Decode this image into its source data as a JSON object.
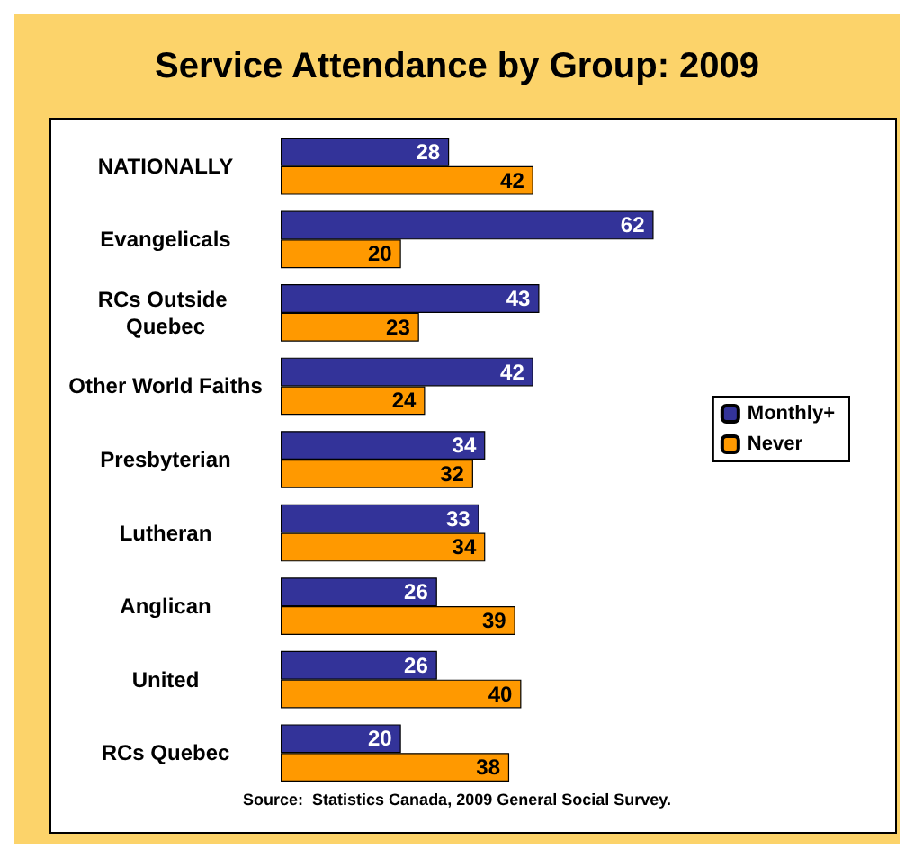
{
  "chart_data": {
    "type": "bar",
    "orientation": "horizontal",
    "title": "Service Attendance by Group: 2009",
    "categories": [
      "NATIONALLY",
      "Evangelicals",
      "RCs Outside Quebec",
      "Other World Faiths",
      "Presbyterian",
      "Lutheran",
      "Anglican",
      "United",
      "RCs Quebec"
    ],
    "series": [
      {
        "name": "Monthly+",
        "color": "#333399",
        "values": [
          28,
          62,
          43,
          42,
          34,
          33,
          26,
          26,
          20
        ]
      },
      {
        "name": "Never",
        "color": "#ff9900",
        "values": [
          42,
          20,
          23,
          24,
          32,
          34,
          39,
          40,
          38
        ]
      }
    ],
    "data_labels": true,
    "legend": "right",
    "annotations": [
      "Source:  Statistics Canada, 2009 General Social Survey."
    ]
  }
}
